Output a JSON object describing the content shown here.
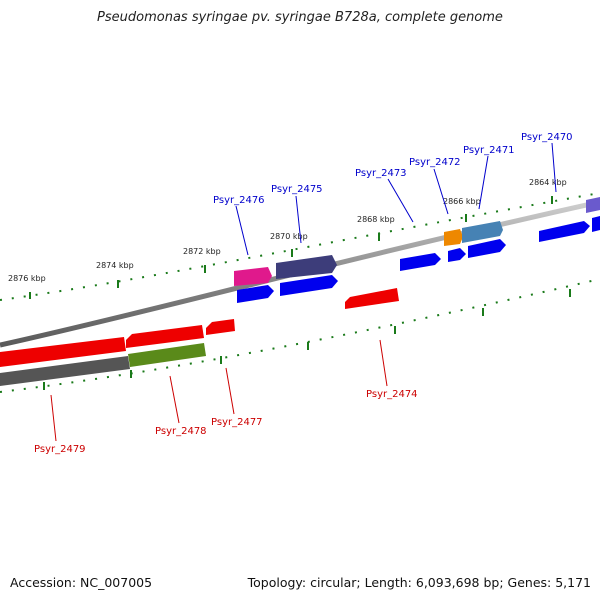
{
  "title": "Pseudomonas syringae pv. syringae B728a, complete genome",
  "footer": {
    "accession": "Accession: NC_007005",
    "topology": "Topology: circular; Length: 6,093,698 bp; Genes: 5,171"
  },
  "kbp_labels": [
    "2876 kbp",
    "2874 kbp",
    "2872 kbp",
    "2870 kbp",
    "2868 kbp",
    "2866 kbp",
    "2864 kbp"
  ],
  "genes_forward": [
    {
      "label": "Psyr_2470",
      "color": "#0000cc"
    },
    {
      "label": "Psyr_2471",
      "color": "#0000cc"
    },
    {
      "label": "Psyr_2472",
      "color": "#0000cc"
    },
    {
      "label": "Psyr_2473",
      "color": "#0000cc"
    },
    {
      "label": "Psyr_2475",
      "color": "#0000cc"
    },
    {
      "label": "Psyr_2476",
      "color": "#0000cc"
    }
  ],
  "genes_reverse": [
    {
      "label": "Psyr_2474",
      "color": "#cc0000"
    },
    {
      "label": "Psyr_2477",
      "color": "#cc0000"
    },
    {
      "label": "Psyr_2478",
      "color": "#cc0000"
    },
    {
      "label": "Psyr_2479",
      "color": "#cc0000"
    }
  ],
  "colors": {
    "forward_cds": "#0000ee",
    "reverse_cds": "#ee0000",
    "backbone": "#888888",
    "tick": "#1a7a1a",
    "pink": "#e0198c",
    "slate": "#3d3d7a",
    "orange": "#ee8800",
    "steel": "#4682b4",
    "olive": "#5a8a1a",
    "dark_gray": "#555555"
  }
}
